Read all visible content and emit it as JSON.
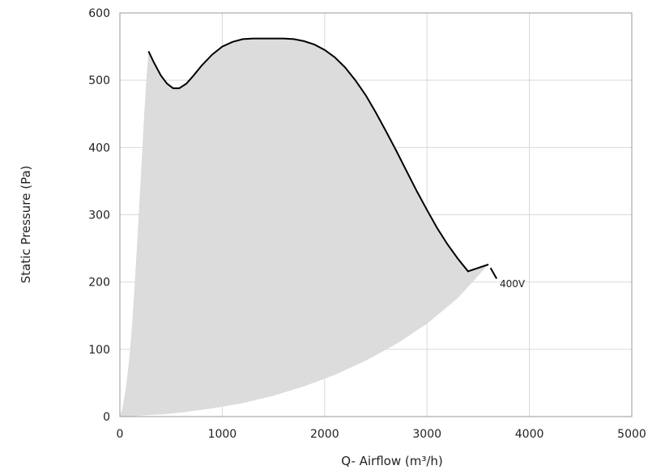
{
  "chart_data": {
    "type": "area",
    "title": "",
    "xlabel": "Q- Airflow (m³/h)",
    "ylabel": "Static Pressure (Pa)",
    "xlim": [
      0,
      5000
    ],
    "ylim": [
      0,
      600
    ],
    "xticks": [
      0,
      1000,
      2000,
      3000,
      4000,
      5000
    ],
    "yticks": [
      0,
      100,
      200,
      300,
      400,
      500,
      600
    ],
    "xtick_labels": [
      "0",
      "1000",
      "2000",
      "3000",
      "4000",
      "5000"
    ],
    "ytick_labels": [
      "0",
      "100",
      "200",
      "300",
      "400",
      "500",
      "600"
    ],
    "grid": true,
    "colors": {
      "fill": "#dcdcdc",
      "curve": "#000000",
      "grid": "#d9d9d9",
      "frame": "#999999"
    },
    "series": [
      {
        "name": "400V",
        "role": "max curve",
        "x": [
          280,
          330,
          400,
          460,
          520,
          580,
          650,
          720,
          800,
          900,
          1000,
          1100,
          1200,
          1300,
          1400,
          1500,
          1600,
          1700,
          1800,
          1900,
          2000,
          2100,
          2200,
          2300,
          2400,
          2500,
          2600,
          2700,
          2800,
          2900,
          3000,
          3100,
          3200,
          3300,
          3400,
          3500,
          3600
        ],
        "y": [
          543,
          527,
          507,
          495,
          488,
          488,
          495,
          507,
          522,
          538,
          550,
          557,
          561,
          562,
          562,
          562,
          562,
          561,
          558,
          553,
          545,
          534,
          519,
          500,
          478,
          452,
          424,
          395,
          365,
          335,
          307,
          280,
          256,
          235,
          216,
          200,
          226
        ]
      },
      {
        "name": "",
        "role": "min curve",
        "x": [
          0,
          50,
          150,
          250,
          400,
          600,
          900,
          1200,
          1500,
          1800,
          2100,
          2400,
          2700,
          3000,
          3300,
          3600
        ],
        "y": [
          0,
          0,
          1,
          2,
          3,
          6,
          12,
          20,
          31,
          45,
          62,
          83,
          108,
          138,
          176,
          226
        ]
      },
      {
        "name": "",
        "role": "left boundary",
        "x": [
          0,
          20,
          40,
          60,
          80,
          100,
          120,
          140,
          160,
          180,
          200,
          220,
          240,
          260,
          280
        ],
        "y": [
          0,
          10,
          25,
          45,
          70,
          100,
          140,
          185,
          235,
          290,
          345,
          400,
          455,
          505,
          543
        ]
      }
    ],
    "annotations": [
      {
        "text": "400V",
        "x": 3710,
        "y": 197
      }
    ]
  }
}
